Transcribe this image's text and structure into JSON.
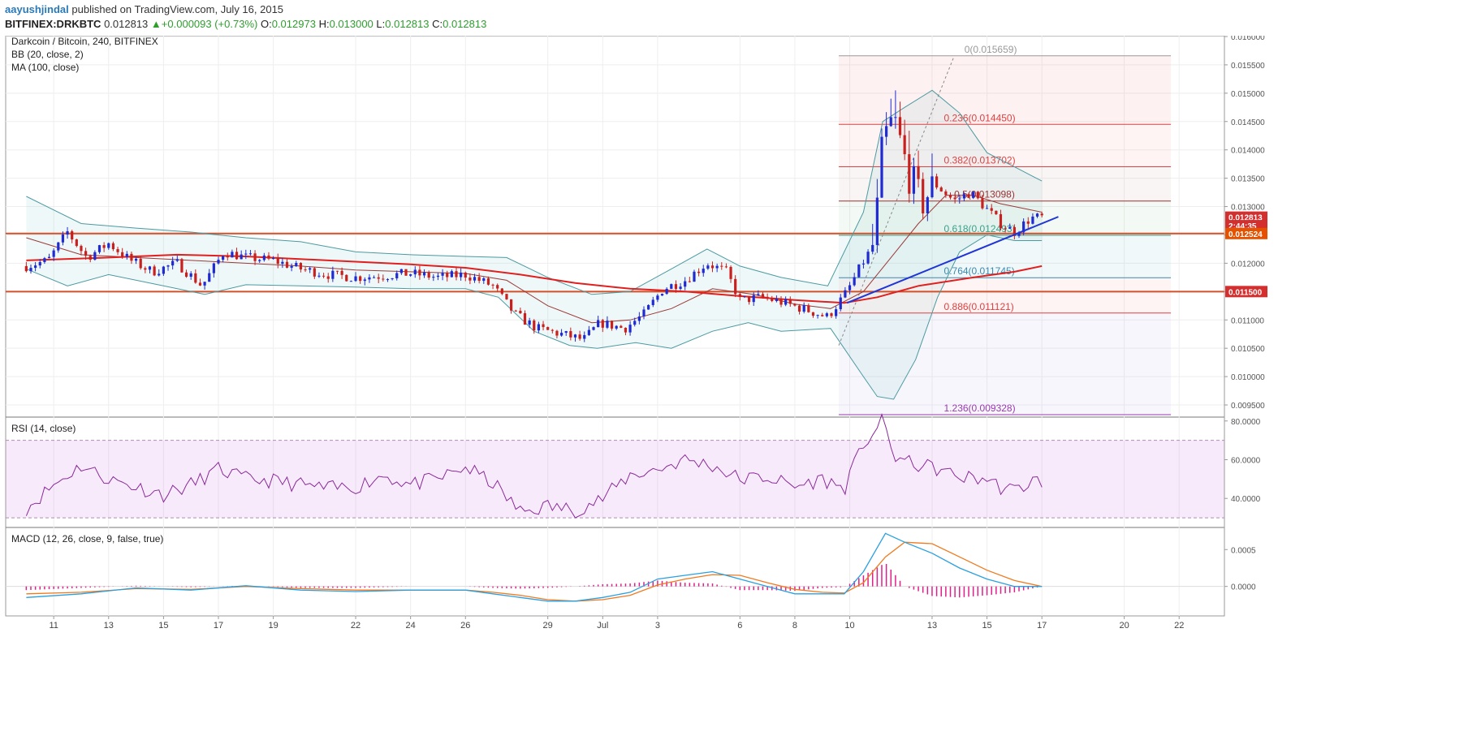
{
  "header": {
    "author": "aayushjindal",
    "published_text": "published on TradingView.com, July 16, 2015",
    "symbol": "BITFINEX:DRKBTC",
    "last": "0.012813",
    "change": "+0.000093 (+0.73%)",
    "open_label": "O:",
    "open": "0.012973",
    "high_label": "H:",
    "high": "0.013000",
    "low_label": "L:",
    "low": "0.012813",
    "close_label": "C:",
    "close": "0.012813"
  },
  "colors": {
    "bull": "#1f2bd1",
    "bear": "#c8201f",
    "bb": "#4b9aa0",
    "bb_mid": "#9b3a3a",
    "ma": "#e0201f",
    "trend": "#1f35d6",
    "rsi": "#8a2a9a",
    "macd": "#2aa0e0",
    "signal": "#f07a20",
    "hist": "#e0208a"
  },
  "chart_data": [
    {
      "type": "candlestick",
      "title": "Darkcoin / Bitcoin, 240, BITFINEX",
      "indicators": [
        "BB (20, close, 2)",
        "MA (100, close)"
      ],
      "ylim": [
        0.0093,
        0.0161
      ],
      "y_ticks": [
        "0.016000",
        "0.015500",
        "0.015000",
        "0.014500",
        "0.014000",
        "0.013500",
        "0.013000",
        "0.012500",
        "0.012000",
        "0.011500",
        "0.011000",
        "0.010500",
        "0.010000",
        "0.009500"
      ],
      "x_tick_labels": [
        {
          "label": "11",
          "day": 11
        },
        {
          "label": "13",
          "day": 13
        },
        {
          "label": "15",
          "day": 15
        },
        {
          "label": "17",
          "day": 17
        },
        {
          "label": "19",
          "day": 19
        },
        {
          "label": "22",
          "day": 22
        },
        {
          "label": "24",
          "day": 24
        },
        {
          "label": "26",
          "day": 26
        },
        {
          "label": "29",
          "day": 29
        },
        {
          "label": "Jul",
          "day": 31
        },
        {
          "label": "3",
          "day": 33
        },
        {
          "label": "6",
          "day": 36
        },
        {
          "label": "8",
          "day": 38
        },
        {
          "label": "10",
          "day": 40
        },
        {
          "label": "13",
          "day": 43
        },
        {
          "label": "15",
          "day": 45
        },
        {
          "label": "17",
          "day": 47
        },
        {
          "label": "20",
          "day": 50
        },
        {
          "label": "22",
          "day": 52
        }
      ],
      "horizontal_levels": [
        0.012524,
        0.0115
      ],
      "fibonacci": [
        {
          "label": "0(0.015659)",
          "value": 0.015659
        },
        {
          "label": "0.236(0.014450)",
          "value": 0.01445
        },
        {
          "label": "0.382(0.013702)",
          "value": 0.013702
        },
        {
          "label": "0.5(0.013098)",
          "value": 0.013098
        },
        {
          "label": "0.618(0.012493)",
          "value": 0.012493
        },
        {
          "label": "0.764(0.011745)",
          "value": 0.011745
        },
        {
          "label": "0.886(0.011121)",
          "value": 0.011121
        },
        {
          "label": "1.236(0.009328)",
          "value": 0.009328
        }
      ],
      "fib_start_day": 39.6,
      "fib_end_day": 51.7,
      "fib_diagonal": [
        {
          "day": 39.6,
          "price": 0.01055
        },
        {
          "day": 43.8,
          "price": 0.01565
        }
      ],
      "trendline": [
        {
          "day": 39.9,
          "price": 0.0113
        },
        {
          "day": 47.6,
          "price": 0.01282
        }
      ],
      "price_tags": [
        {
          "text": "0.012813",
          "value": 0.012813,
          "color": "#d32f2f"
        },
        {
          "text": "2:44:35",
          "value": 0.012663,
          "color": "#d32f2f"
        },
        {
          "text": "0.012524",
          "value": 0.012524,
          "color": "#e65100"
        },
        {
          "text": "0.011500",
          "value": 0.0115,
          "color": "#d32f2f"
        }
      ],
      "segments": [
        {
          "day": 10.0,
          "price": 0.01195
        },
        {
          "day": 10.8,
          "price": 0.01205
        },
        {
          "day": 11.5,
          "price": 0.01255
        },
        {
          "day": 12.2,
          "price": 0.0121
        },
        {
          "day": 13.0,
          "price": 0.01235
        },
        {
          "day": 13.8,
          "price": 0.01205
        },
        {
          "day": 14.6,
          "price": 0.01185
        },
        {
          "day": 15.5,
          "price": 0.012
        },
        {
          "day": 16.4,
          "price": 0.0116
        },
        {
          "day": 17.2,
          "price": 0.0122
        },
        {
          "day": 18.0,
          "price": 0.0121
        },
        {
          "day": 19.0,
          "price": 0.01205
        },
        {
          "day": 20.0,
          "price": 0.0119
        },
        {
          "day": 21.0,
          "price": 0.0118
        },
        {
          "day": 22.0,
          "price": 0.01175
        },
        {
          "day": 23.0,
          "price": 0.01178
        },
        {
          "day": 24.0,
          "price": 0.01182
        },
        {
          "day": 25.0,
          "price": 0.01175
        },
        {
          "day": 26.0,
          "price": 0.0118
        },
        {
          "day": 27.0,
          "price": 0.0116
        },
        {
          "day": 27.8,
          "price": 0.0111
        },
        {
          "day": 28.6,
          "price": 0.01085
        },
        {
          "day": 29.5,
          "price": 0.01075
        },
        {
          "day": 30.3,
          "price": 0.01065
        },
        {
          "day": 30.9,
          "price": 0.01095
        },
        {
          "day": 31.8,
          "price": 0.01085
        },
        {
          "day": 32.5,
          "price": 0.0111
        },
        {
          "day": 33.2,
          "price": 0.01155
        },
        {
          "day": 34.0,
          "price": 0.0117
        },
        {
          "day": 34.8,
          "price": 0.012
        },
        {
          "day": 35.5,
          "price": 0.01185
        },
        {
          "day": 36.0,
          "price": 0.01135
        },
        {
          "day": 36.8,
          "price": 0.0114
        },
        {
          "day": 37.6,
          "price": 0.0113
        },
        {
          "day": 38.4,
          "price": 0.01118
        },
        {
          "day": 39.2,
          "price": 0.01105
        },
        {
          "day": 39.9,
          "price": 0.0115
        },
        {
          "day": 40.4,
          "price": 0.01195
        },
        {
          "day": 40.9,
          "price": 0.01235
        },
        {
          "day": 41.2,
          "price": 0.0141
        },
        {
          "day": 41.6,
          "price": 0.01455
        },
        {
          "day": 42.1,
          "price": 0.01365
        },
        {
          "day": 42.6,
          "price": 0.01305
        },
        {
          "day": 43.1,
          "price": 0.0134
        },
        {
          "day": 43.8,
          "price": 0.0131
        },
        {
          "day": 44.4,
          "price": 0.01325
        },
        {
          "day": 45.0,
          "price": 0.01295
        },
        {
          "day": 45.5,
          "price": 0.0127
        },
        {
          "day": 46.0,
          "price": 0.01255
        },
        {
          "day": 46.6,
          "price": 0.0128
        },
        {
          "day": 47.0,
          "price": 0.01281
        }
      ],
      "bb_upper": [
        {
          "day": 10.0,
          "price": 0.01318
        },
        {
          "day": 12.0,
          "price": 0.0127
        },
        {
          "day": 14.0,
          "price": 0.01262
        },
        {
          "day": 16.0,
          "price": 0.01255
        },
        {
          "day": 18.0,
          "price": 0.01245
        },
        {
          "day": 20.0,
          "price": 0.01238
        },
        {
          "day": 22.0,
          "price": 0.0122
        },
        {
          "day": 24.0,
          "price": 0.01215
        },
        {
          "day": 26.0,
          "price": 0.01212
        },
        {
          "day": 27.5,
          "price": 0.0121
        },
        {
          "day": 29.0,
          "price": 0.01175
        },
        {
          "day": 30.6,
          "price": 0.01145
        },
        {
          "day": 32.0,
          "price": 0.0115
        },
        {
          "day": 33.5,
          "price": 0.0119
        },
        {
          "day": 34.8,
          "price": 0.01225
        },
        {
          "day": 36.0,
          "price": 0.01195
        },
        {
          "day": 37.5,
          "price": 0.01175
        },
        {
          "day": 39.2,
          "price": 0.0116
        },
        {
          "day": 40.5,
          "price": 0.0129
        },
        {
          "day": 41.2,
          "price": 0.0145
        },
        {
          "day": 42.0,
          "price": 0.01475
        },
        {
          "day": 43.0,
          "price": 0.01505
        },
        {
          "day": 44.0,
          "price": 0.01465
        },
        {
          "day": 45.0,
          "price": 0.01395
        },
        {
          "day": 46.0,
          "price": 0.0137
        },
        {
          "day": 47.0,
          "price": 0.01345
        }
      ],
      "bb_lower": [
        {
          "day": 10.0,
          "price": 0.0119
        },
        {
          "day": 11.5,
          "price": 0.0116
        },
        {
          "day": 13.0,
          "price": 0.0118
        },
        {
          "day": 15.0,
          "price": 0.0116
        },
        {
          "day": 16.5,
          "price": 0.01145
        },
        {
          "day": 18.0,
          "price": 0.01162
        },
        {
          "day": 20.0,
          "price": 0.0116
        },
        {
          "day": 22.0,
          "price": 0.01158
        },
        {
          "day": 24.0,
          "price": 0.01155
        },
        {
          "day": 26.0,
          "price": 0.01155
        },
        {
          "day": 27.2,
          "price": 0.0114
        },
        {
          "day": 28.5,
          "price": 0.0108
        },
        {
          "day": 29.8,
          "price": 0.01055
        },
        {
          "day": 30.8,
          "price": 0.0105
        },
        {
          "day": 32.2,
          "price": 0.0106
        },
        {
          "day": 33.5,
          "price": 0.0105
        },
        {
          "day": 35.0,
          "price": 0.0108
        },
        {
          "day": 36.3,
          "price": 0.01095
        },
        {
          "day": 37.5,
          "price": 0.0108
        },
        {
          "day": 39.3,
          "price": 0.01085
        },
        {
          "day": 40.5,
          "price": 0.01
        },
        {
          "day": 41.0,
          "price": 0.00965
        },
        {
          "day": 41.6,
          "price": 0.0096
        },
        {
          "day": 42.4,
          "price": 0.0103
        },
        {
          "day": 43.2,
          "price": 0.0114
        },
        {
          "day": 44.0,
          "price": 0.0122
        },
        {
          "day": 45.0,
          "price": 0.0125
        },
        {
          "day": 46.0,
          "price": 0.0124
        },
        {
          "day": 47.0,
          "price": 0.0124
        }
      ],
      "bb_middle": [
        {
          "day": 10.0,
          "price": 0.01245
        },
        {
          "day": 12.0,
          "price": 0.01215
        },
        {
          "day": 14.0,
          "price": 0.0121
        },
        {
          "day": 16.0,
          "price": 0.01205
        },
        {
          "day": 18.0,
          "price": 0.012
        },
        {
          "day": 20.0,
          "price": 0.01195
        },
        {
          "day": 22.0,
          "price": 0.01188
        },
        {
          "day": 24.0,
          "price": 0.01185
        },
        {
          "day": 26.0,
          "price": 0.01182
        },
        {
          "day": 27.5,
          "price": 0.0117
        },
        {
          "day": 29.0,
          "price": 0.01125
        },
        {
          "day": 30.6,
          "price": 0.01095
        },
        {
          "day": 32.0,
          "price": 0.011
        },
        {
          "day": 33.5,
          "price": 0.0112
        },
        {
          "day": 35.0,
          "price": 0.01155
        },
        {
          "day": 36.5,
          "price": 0.01145
        },
        {
          "day": 38.0,
          "price": 0.01128
        },
        {
          "day": 39.3,
          "price": 0.0112
        },
        {
          "day": 40.5,
          "price": 0.0115
        },
        {
          "day": 41.5,
          "price": 0.0121
        },
        {
          "day": 42.5,
          "price": 0.0127
        },
        {
          "day": 43.5,
          "price": 0.0132
        },
        {
          "day": 44.5,
          "price": 0.0132
        },
        {
          "day": 45.5,
          "price": 0.01305
        },
        {
          "day": 46.5,
          "price": 0.01295
        },
        {
          "day": 47.0,
          "price": 0.0129
        }
      ],
      "ma100": [
        {
          "day": 10.0,
          "price": 0.01205
        },
        {
          "day": 13.0,
          "price": 0.0121
        },
        {
          "day": 15.5,
          "price": 0.01215
        },
        {
          "day": 18.0,
          "price": 0.01212
        },
        {
          "day": 21.0,
          "price": 0.01205
        },
        {
          "day": 24.0,
          "price": 0.01198
        },
        {
          "day": 26.0,
          "price": 0.01192
        },
        {
          "day": 28.0,
          "price": 0.0118
        },
        {
          "day": 30.0,
          "price": 0.01165
        },
        {
          "day": 32.0,
          "price": 0.01155
        },
        {
          "day": 34.0,
          "price": 0.0115
        },
        {
          "day": 36.0,
          "price": 0.01142
        },
        {
          "day": 38.0,
          "price": 0.01135
        },
        {
          "day": 39.8,
          "price": 0.0113
        },
        {
          "day": 41.0,
          "price": 0.0114
        },
        {
          "day": 42.5,
          "price": 0.0116
        },
        {
          "day": 44.5,
          "price": 0.01175
        },
        {
          "day": 46.0,
          "price": 0.01185
        },
        {
          "day": 47.0,
          "price": 0.01195
        }
      ]
    },
    {
      "type": "line",
      "title": "RSI (14, close)",
      "ylim": [
        25,
        82
      ],
      "y_ticks": [
        "80.0000",
        "60.0000",
        "40.0000"
      ],
      "band": [
        30,
        70
      ],
      "x": [
        10,
        11,
        12,
        13,
        14,
        15,
        16,
        17,
        18,
        19,
        20,
        21,
        22,
        23,
        24,
        25,
        26,
        27,
        28,
        29,
        30,
        31,
        32,
        33,
        34,
        35,
        36,
        37,
        38,
        39,
        39.8,
        40.5,
        41.2,
        41.6,
        42.2,
        43,
        44,
        45,
        45.6,
        46.1,
        46.6,
        47
      ],
      "y": [
        35,
        47,
        57,
        50,
        46,
        42,
        47,
        55,
        50,
        49,
        47,
        45,
        46,
        52,
        47,
        50,
        56,
        48,
        33,
        36,
        34,
        40,
        52,
        55,
        60,
        57,
        50,
        51,
        46,
        50,
        45,
        68,
        80,
        62,
        58,
        56,
        51,
        50,
        45,
        44,
        49,
        49
      ]
    },
    {
      "type": "line",
      "title": "MACD (12, 26, close, 9, false, true)",
      "ylim": [
        -0.0004,
        0.0008
      ],
      "y_ticks": [
        "0.0005",
        "0.0000"
      ],
      "x": [
        10,
        12,
        14,
        16,
        18,
        20,
        22,
        24,
        26,
        27,
        28,
        29,
        30,
        31,
        32,
        33,
        34,
        35,
        36,
        37,
        38,
        39,
        39.8,
        40.5,
        41.3,
        42,
        43,
        44,
        45,
        46,
        47
      ],
      "series": [
        {
          "values": [
            -0.00015,
            -0.0001,
            -2e-05,
            -5e-05,
            1e-05,
            -5e-05,
            -7e-05,
            -5e-05,
            -5e-05,
            -0.0001,
            -0.00015,
            -0.0002,
            -0.0002,
            -0.00015,
            -8e-05,
            0.0001,
            0.00015,
            0.0002,
            0.0001,
            0.0,
            -0.0001,
            -0.0001,
            -0.0001,
            0.0002,
            0.00072,
            0.0006,
            0.00045,
            0.00025,
            0.0001,
            0.0,
            0.0
          ]
        },
        {
          "values": [
            -0.0001,
            -8e-05,
            -3e-05,
            -4e-05,
            0.0,
            -3e-05,
            -5e-05,
            -5e-05,
            -5e-05,
            -8e-05,
            -0.00012,
            -0.00018,
            -0.0002,
            -0.00018,
            -0.00012,
            2e-05,
            0.0001,
            0.00016,
            0.00015,
            5e-05,
            -4e-05,
            -8e-05,
            -9e-05,
            5e-05,
            0.0004,
            0.0006,
            0.00058,
            0.0004,
            0.00022,
            8e-05,
            0.0
          ]
        },
        {
          "values": [
            -5e-05,
            -2e-05,
            1e-05,
            -1e-05,
            1e-05,
            -2e-05,
            -2e-05,
            0.0,
            0.0,
            -2e-05,
            -3e-05,
            -2e-05,
            0.0,
            3e-05,
            4e-05,
            8e-05,
            5e-05,
            4e-05,
            -5e-05,
            -5e-05,
            -6e-05,
            -2e-05,
            -1e-05,
            0.00015,
            0.00032,
            0.0,
            -0.00013,
            -0.00015,
            -0.00012,
            -8e-05,
            0.0
          ]
        }
      ]
    }
  ]
}
